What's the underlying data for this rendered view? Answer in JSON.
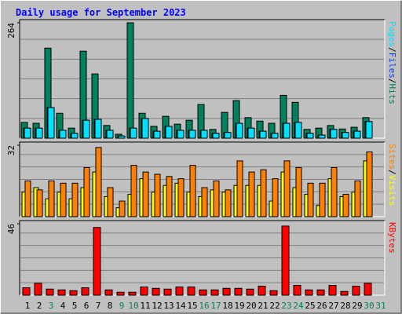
{
  "title": "Daily usage for September 2023",
  "legend_separator": "/",
  "chart_data": [
    {
      "type": "bar",
      "ylim": [
        0,
        264
      ],
      "yticks": [
        264
      ],
      "grid": true,
      "series": [
        {
          "name": "Hits",
          "color": "#00805c",
          "values": [
            36,
            34,
            206,
            57,
            23,
            199,
            147,
            29,
            9,
            264,
            57,
            27,
            50,
            32,
            41,
            77,
            20,
            59,
            86,
            47,
            39,
            34,
            98,
            82,
            20,
            23,
            29,
            21,
            25,
            47,
            null
          ]
        },
        {
          "name": "Files",
          "color": "#0040ff",
          "values": [
            23,
            23,
            70,
            18,
            11,
            41,
            43,
            18,
            5,
            23,
            45,
            16,
            27,
            18,
            18,
            18,
            11,
            13,
            34,
            23,
            16,
            11,
            34,
            36,
            11,
            7,
            20,
            13,
            16,
            38,
            null
          ]
        },
        {
          "name": "Pages",
          "color": "#00e0ff",
          "values": [
            23,
            23,
            70,
            18,
            11,
            41,
            43,
            18,
            5,
            23,
            45,
            16,
            27,
            18,
            18,
            18,
            11,
            13,
            34,
            23,
            16,
            11,
            34,
            36,
            11,
            7,
            20,
            13,
            16,
            38,
            null
          ]
        }
      ]
    },
    {
      "type": "bar",
      "ylim": [
        0,
        32
      ],
      "yticks": [
        32
      ],
      "grid": true,
      "series": [
        {
          "name": "Visits",
          "color": "#ffff00",
          "values": [
            11,
            13,
            8,
            11,
            8,
            13,
            20,
            9,
            4,
            10,
            17,
            11,
            14,
            15,
            11,
            9,
            12,
            11,
            14,
            14,
            14,
            7,
            20,
            13,
            10,
            5,
            17,
            9,
            11,
            25,
            null
          ]
        },
        {
          "name": "Sites",
          "color": "#ff8000",
          "values": [
            16,
            12,
            16,
            15,
            15,
            22,
            31,
            13,
            7,
            23,
            20,
            19,
            18,
            17,
            23,
            13,
            16,
            12,
            25,
            20,
            21,
            17,
            25,
            22,
            15,
            15,
            22,
            10,
            16,
            29,
            null
          ]
        }
      ]
    },
    {
      "type": "bar",
      "ylim": [
        0,
        46
      ],
      "yticks": [
        46
      ],
      "grid": true,
      "categories": [
        "1",
        "2",
        "3",
        "4",
        "5",
        "6",
        "7",
        "8",
        "9",
        "10",
        "11",
        "12",
        "13",
        "14",
        "15",
        "16",
        "17",
        "18",
        "19",
        "20",
        "21",
        "22",
        "23",
        "24",
        "25",
        "26",
        "27",
        "28",
        "29",
        "30",
        "31"
      ],
      "category_colors": [
        "#000000",
        "#000000",
        "#00805c",
        "#000000",
        "#000000",
        "#000000",
        "#000000",
        "#000000",
        "#00805c",
        "#00805c",
        "#000000",
        "#000000",
        "#000000",
        "#000000",
        "#000000",
        "#00805c",
        "#00805c",
        "#000000",
        "#000000",
        "#000000",
        "#000000",
        "#000000",
        "#00805c",
        "#00805c",
        "#000000",
        "#000000",
        "#000000",
        "#000000",
        "#000000",
        "#00805c",
        "#00805c"
      ],
      "series": [
        {
          "name": "KBytes",
          "color": "#ff0000",
          "values": [
            4.8,
            7.7,
            3.9,
            3.4,
            2.9,
            4.8,
            43.6,
            3.4,
            1.9,
            1.9,
            5.3,
            4.4,
            3.9,
            5.3,
            5.3,
            3.4,
            3.4,
            4.4,
            4.4,
            3.9,
            5.8,
            2.9,
            44.5,
            6.3,
            3.4,
            3.4,
            6.3,
            2.4,
            5.8,
            7.7,
            null
          ]
        }
      ]
    }
  ]
}
